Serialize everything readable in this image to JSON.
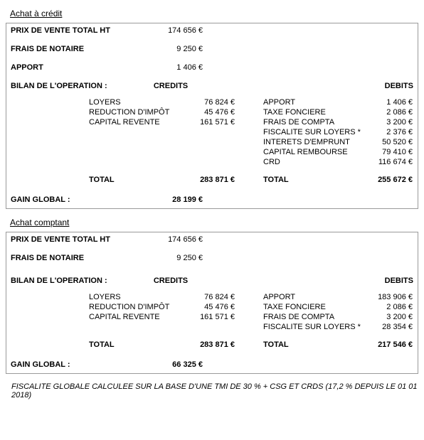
{
  "currency": "€",
  "credit": {
    "title": "Achat à crédit",
    "top": [
      {
        "label": "PRIX DE VENTE TOTAL HT",
        "value": "174 656 €"
      },
      {
        "label": "FRAIS DE NOTAIRE",
        "value": "9 250 €"
      },
      {
        "label": "APPORT",
        "value": "1 406 €"
      }
    ],
    "bilan_label": "BILAN DE L'OPERATION :",
    "credits_header": "CREDITS",
    "debits_header": "DEBITS",
    "credits": [
      {
        "label": "LOYERS",
        "value": "76 824 €"
      },
      {
        "label": "REDUCTION D'IMPÔT",
        "value": "45 476 €"
      },
      {
        "label": "CAPITAL REVENTE",
        "value": "161 571 €"
      }
    ],
    "debits": [
      {
        "label": "APPORT",
        "value": "1 406 €"
      },
      {
        "label": "TAXE FONCIERE",
        "value": "2 086 €"
      },
      {
        "label": "FRAIS DE COMPTA",
        "value": "3 200 €"
      },
      {
        "label": "FISCALITE SUR LOYERS *",
        "value": "2 376 €"
      },
      {
        "label": "INTERETS D'EMPRUNT",
        "value": "50 520 €"
      },
      {
        "label": "CAPITAL REMBOURSE",
        "value": "79 410 €"
      },
      {
        "label": "CRD",
        "value": "116 674 €"
      }
    ],
    "total_label": "TOTAL",
    "credits_total": "283 871 €",
    "debits_total": "255 672 €",
    "gain_label": "GAIN GLOBAL :",
    "gain_value": "28 199 €"
  },
  "cash": {
    "title": "Achat comptant",
    "top": [
      {
        "label": "PRIX DE VENTE TOTAL HT",
        "value": "174 656 €"
      },
      {
        "label": "FRAIS DE NOTAIRE",
        "value": "9 250 €"
      }
    ],
    "bilan_label": "BILAN DE L'OPERATION :",
    "credits_header": "CREDITS",
    "debits_header": "DEBITS",
    "credits": [
      {
        "label": "LOYERS",
        "value": "76 824 €"
      },
      {
        "label": "REDUCTION D'IMPÔT",
        "value": "45 476 €"
      },
      {
        "label": "CAPITAL REVENTE",
        "value": "161 571 €"
      }
    ],
    "debits": [
      {
        "label": "APPORT",
        "value": "183 906 €"
      },
      {
        "label": "TAXE FONCIERE",
        "value": "2 086 €"
      },
      {
        "label": "FRAIS DE COMPTA",
        "value": "3 200 €"
      },
      {
        "label": "FISCALITE SUR LOYERS *",
        "value": "28 354 €"
      }
    ],
    "total_label": "TOTAL",
    "credits_total": "283 871 €",
    "debits_total": "217 546 €",
    "gain_label": "GAIN GLOBAL :",
    "gain_value": "66 325 €"
  },
  "footnote": "FISCALITE GLOBALE CALCULEE SUR LA BASE D'UNE TMI DE 30 % + CSG ET CRDS (17,2 % DEPUIS LE 01 01 2018)"
}
